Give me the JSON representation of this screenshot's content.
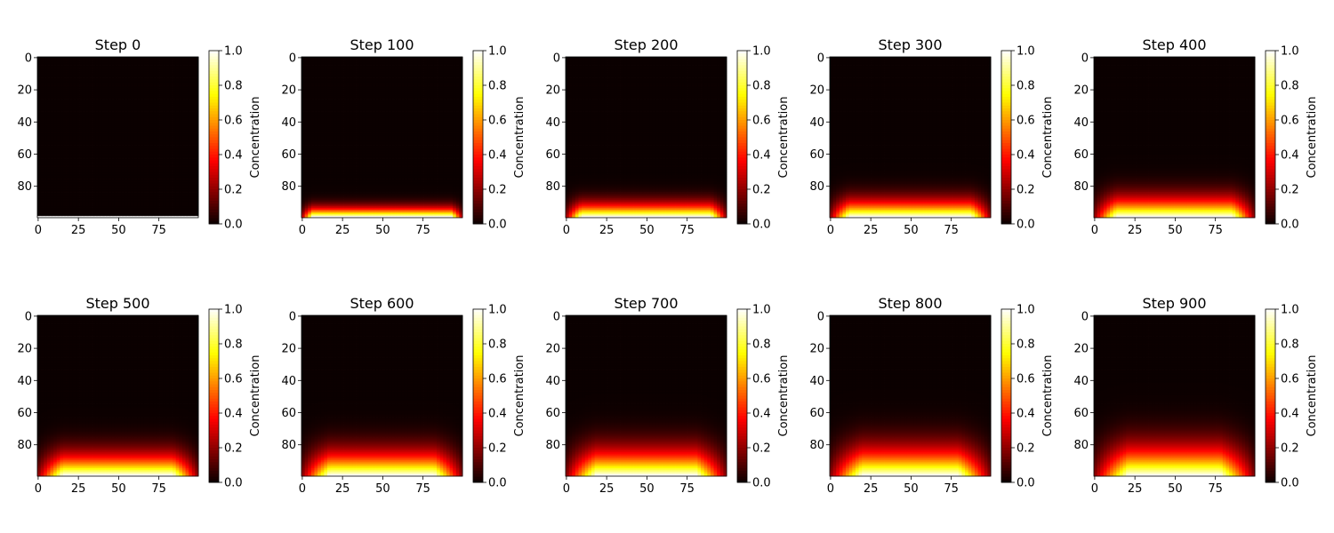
{
  "colormap": {
    "name": "hot",
    "stops": [
      {
        "v": 0.0,
        "color": "#0b0000"
      },
      {
        "v": 0.365,
        "color": "#ff0000"
      },
      {
        "v": 0.746,
        "color": "#ffff00"
      },
      {
        "v": 1.0,
        "color": "#ffffff"
      }
    ]
  },
  "chart_data": [
    {
      "type": "heatmap",
      "title": "Step 0",
      "step": 0,
      "xticks": [
        "0",
        "25",
        "50",
        "75"
      ],
      "yticks": [
        "0",
        "20",
        "40",
        "60",
        "80"
      ],
      "x_range": [
        0,
        99
      ],
      "y_range": [
        0,
        99
      ],
      "colorbar": {
        "label": "Concentration",
        "range": [
          0,
          1
        ],
        "ticks": [
          "0.0",
          "0.2",
          "0.4",
          "0.6",
          "0.8",
          "1.0"
        ]
      }
    },
    {
      "type": "heatmap",
      "title": "Step 100",
      "step": 100,
      "xticks": [
        "0",
        "25",
        "50",
        "75"
      ],
      "yticks": [
        "0",
        "20",
        "40",
        "60",
        "80"
      ],
      "x_range": [
        0,
        99
      ],
      "y_range": [
        0,
        99
      ],
      "colorbar": {
        "label": "Concentration",
        "range": [
          0,
          1
        ],
        "ticks": [
          "0.0",
          "0.2",
          "0.4",
          "0.6",
          "0.8",
          "1.0"
        ]
      }
    },
    {
      "type": "heatmap",
      "title": "Step 200",
      "step": 200,
      "xticks": [
        "0",
        "25",
        "50",
        "75"
      ],
      "yticks": [
        "0",
        "20",
        "40",
        "60",
        "80"
      ],
      "x_range": [
        0,
        99
      ],
      "y_range": [
        0,
        99
      ],
      "colorbar": {
        "label": "Concentration",
        "range": [
          0,
          1
        ],
        "ticks": [
          "0.0",
          "0.2",
          "0.4",
          "0.6",
          "0.8",
          "1.0"
        ]
      }
    },
    {
      "type": "heatmap",
      "title": "Step 300",
      "step": 300,
      "xticks": [
        "0",
        "25",
        "50",
        "75"
      ],
      "yticks": [
        "0",
        "20",
        "40",
        "60",
        "80"
      ],
      "x_range": [
        0,
        99
      ],
      "y_range": [
        0,
        99
      ],
      "colorbar": {
        "label": "Concentration",
        "range": [
          0,
          1
        ],
        "ticks": [
          "0.0",
          "0.2",
          "0.4",
          "0.6",
          "0.8",
          "1.0"
        ]
      }
    },
    {
      "type": "heatmap",
      "title": "Step 400",
      "step": 400,
      "xticks": [
        "0",
        "25",
        "50",
        "75"
      ],
      "yticks": [
        "0",
        "20",
        "40",
        "60",
        "80"
      ],
      "x_range": [
        0,
        99
      ],
      "y_range": [
        0,
        99
      ],
      "colorbar": {
        "label": "Concentration",
        "range": [
          0,
          1
        ],
        "ticks": [
          "0.0",
          "0.2",
          "0.4",
          "0.6",
          "0.8",
          "1.0"
        ]
      }
    },
    {
      "type": "heatmap",
      "title": "Step 500",
      "step": 500,
      "xticks": [
        "0",
        "25",
        "50",
        "75"
      ],
      "yticks": [
        "0",
        "20",
        "40",
        "60",
        "80"
      ],
      "x_range": [
        0,
        99
      ],
      "y_range": [
        0,
        99
      ],
      "colorbar": {
        "label": "Concentration",
        "range": [
          0,
          1
        ],
        "ticks": [
          "0.0",
          "0.2",
          "0.4",
          "0.6",
          "0.8",
          "1.0"
        ]
      }
    },
    {
      "type": "heatmap",
      "title": "Step 600",
      "step": 600,
      "xticks": [
        "0",
        "25",
        "50",
        "75"
      ],
      "yticks": [
        "0",
        "20",
        "40",
        "60",
        "80"
      ],
      "x_range": [
        0,
        99
      ],
      "y_range": [
        0,
        99
      ],
      "colorbar": {
        "label": "Concentration",
        "range": [
          0,
          1
        ],
        "ticks": [
          "0.0",
          "0.2",
          "0.4",
          "0.6",
          "0.8",
          "1.0"
        ]
      }
    },
    {
      "type": "heatmap",
      "title": "Step 700",
      "step": 700,
      "xticks": [
        "0",
        "25",
        "50",
        "75"
      ],
      "yticks": [
        "0",
        "20",
        "40",
        "60",
        "80"
      ],
      "x_range": [
        0,
        99
      ],
      "y_range": [
        0,
        99
      ],
      "colorbar": {
        "label": "Concentration",
        "range": [
          0,
          1
        ],
        "ticks": [
          "0.0",
          "0.2",
          "0.4",
          "0.6",
          "0.8",
          "1.0"
        ]
      }
    },
    {
      "type": "heatmap",
      "title": "Step 800",
      "step": 800,
      "xticks": [
        "0",
        "25",
        "50",
        "75"
      ],
      "yticks": [
        "0",
        "20",
        "40",
        "60",
        "80"
      ],
      "x_range": [
        0,
        99
      ],
      "y_range": [
        0,
        99
      ],
      "colorbar": {
        "label": "Concentration",
        "range": [
          0,
          1
        ],
        "ticks": [
          "0.0",
          "0.2",
          "0.4",
          "0.6",
          "0.8",
          "1.0"
        ]
      }
    },
    {
      "type": "heatmap",
      "title": "Step 900",
      "step": 900,
      "xticks": [
        "0",
        "25",
        "50",
        "75"
      ],
      "yticks": [
        "0",
        "20",
        "40",
        "60",
        "80"
      ],
      "x_range": [
        0,
        99
      ],
      "y_range": [
        0,
        99
      ],
      "colorbar": {
        "label": "Concentration",
        "range": [
          0,
          1
        ],
        "ticks": [
          "0.0",
          "0.2",
          "0.4",
          "0.6",
          "0.8",
          "1.0"
        ]
      }
    }
  ]
}
